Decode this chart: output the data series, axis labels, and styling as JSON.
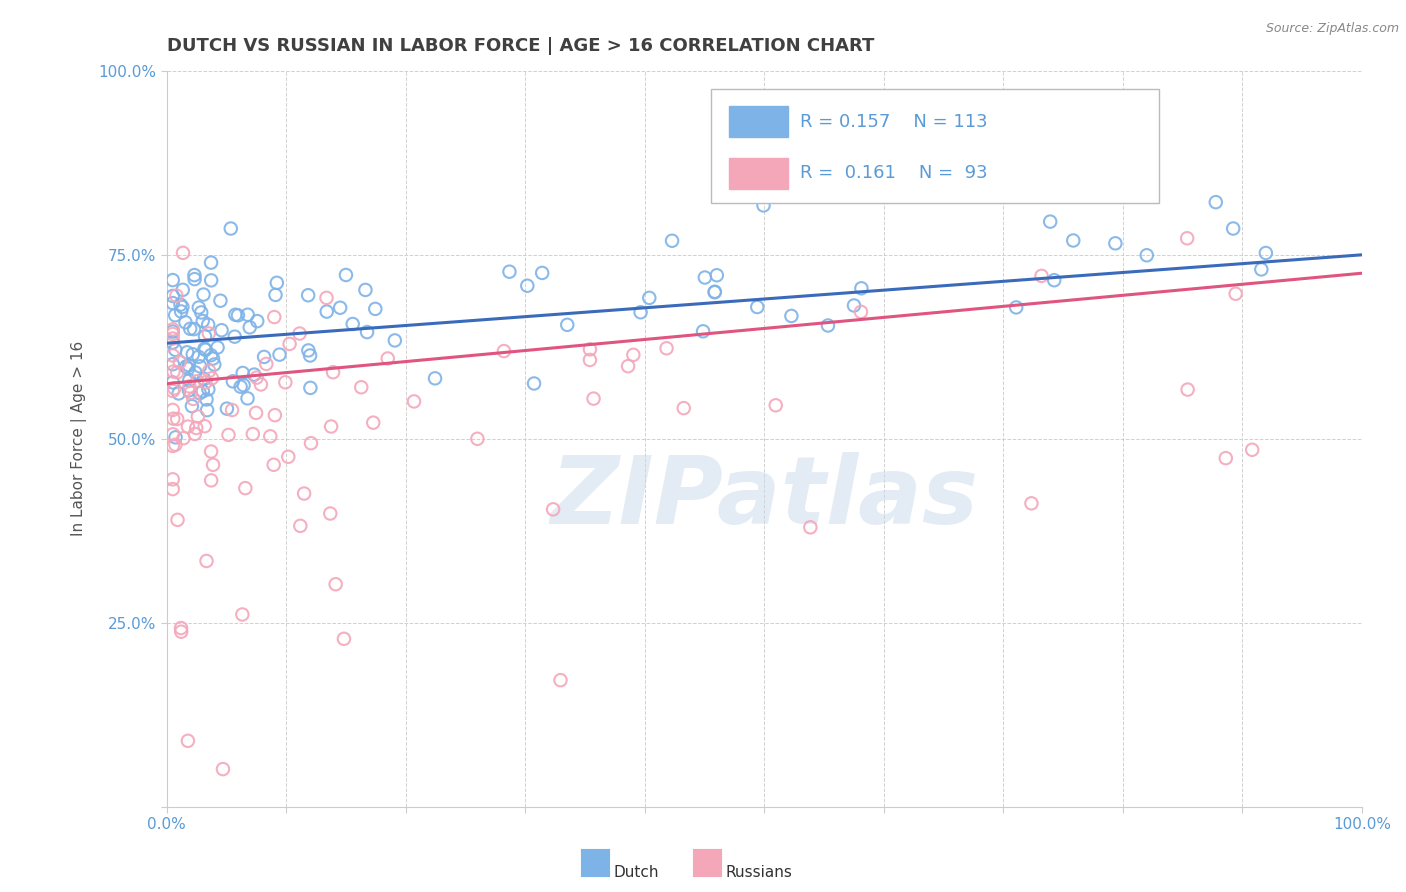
{
  "title": "DUTCH VS RUSSIAN IN LABOR FORCE | AGE > 16 CORRELATION CHART",
  "source": "Source: ZipAtlas.com",
  "ylabel": "In Labor Force | Age > 16",
  "xlim": [
    0.0,
    1.0
  ],
  "ylim": [
    0.0,
    1.0
  ],
  "dutch_color": "#7EB3E8",
  "russian_color": "#F4A7B9",
  "dutch_line_color": "#3A6BBB",
  "russian_line_color": "#E05580",
  "dutch_R": 0.157,
  "dutch_N": 113,
  "russian_R": 0.161,
  "russian_N": 93,
  "legend_label_dutch": "Dutch",
  "legend_label_russian": "Russians",
  "watermark": "ZIPatlas",
  "background_color": "#ffffff",
  "grid_color": "#cccccc",
  "title_color": "#404040",
  "axis_label_color": "#5B9BD5",
  "legend_text_color": "#5B9BD5",
  "dutch_trend_start": 0.63,
  "dutch_trend_end": 0.75,
  "russian_trend_start": 0.575,
  "russian_trend_end": 0.725
}
